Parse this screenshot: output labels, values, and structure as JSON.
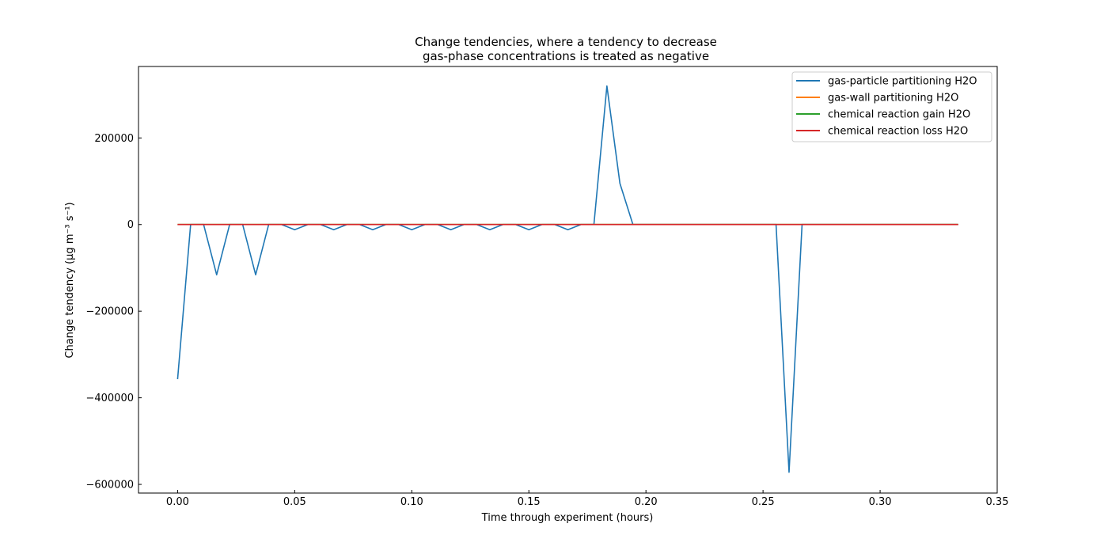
{
  "chart_data": {
    "type": "line",
    "title_line1": "Change tendencies, where a tendency to decrease",
    "title_line2": "gas-phase concentrations is treated as negative",
    "xlabel": "Time through experiment (hours)",
    "ylabel": "Change tendency (μg m⁻³ s⁻¹)",
    "xlim": [
      -0.0167,
      0.35
    ],
    "ylim": [
      -620000,
      365000
    ],
    "xticks": [
      0.0,
      0.05,
      0.1,
      0.15,
      0.2,
      0.25,
      0.3,
      0.35
    ],
    "xtick_labels": [
      "0.00",
      "0.05",
      "0.10",
      "0.15",
      "0.20",
      "0.25",
      "0.30",
      "0.35"
    ],
    "yticks": [
      -600000,
      -400000,
      -200000,
      0,
      200000
    ],
    "ytick_labels": [
      "−600000",
      "−400000",
      "−200000",
      "0",
      "200000"
    ],
    "grid": false,
    "legend_position": "top-right",
    "series": [
      {
        "name": "gas-particle partitioning H2O",
        "color": "#1f77b4",
        "x": [
          0.0,
          0.00556,
          0.01111,
          0.01667,
          0.02222,
          0.02778,
          0.03333,
          0.03889,
          0.04444,
          0.05,
          0.05556,
          0.06111,
          0.06667,
          0.07222,
          0.07778,
          0.08333,
          0.08889,
          0.09444,
          0.1,
          0.10556,
          0.11111,
          0.11667,
          0.12222,
          0.12778,
          0.13333,
          0.13889,
          0.14444,
          0.15,
          0.15556,
          0.16111,
          0.16667,
          0.17222,
          0.17778,
          0.18333,
          0.18889,
          0.19444,
          0.2,
          0.25556,
          0.26111,
          0.26667,
          0.33333
        ],
        "y": [
          -357000,
          0,
          0,
          -116000,
          0,
          0,
          -116000,
          0,
          0,
          -12000,
          0,
          0,
          -12000,
          0,
          0,
          -12000,
          0,
          0,
          -12000,
          0,
          0,
          -12000,
          0,
          0,
          -12000,
          0,
          0,
          -12000,
          0,
          0,
          -12000,
          0,
          0,
          320000,
          95000,
          0,
          0,
          0,
          -572000,
          0,
          0
        ]
      },
      {
        "name": "gas-wall partitioning H2O",
        "color": "#ff7f0e",
        "x": [
          0.0,
          0.33333
        ],
        "y": [
          0,
          0
        ]
      },
      {
        "name": "chemical reaction gain H2O",
        "color": "#2ca02c",
        "x": [
          0.0,
          0.33333
        ],
        "y": [
          0,
          0
        ]
      },
      {
        "name": "chemical reaction loss H2O",
        "color": "#d62728",
        "x": [
          0.0,
          0.33333
        ],
        "y": [
          0,
          0
        ]
      }
    ]
  }
}
